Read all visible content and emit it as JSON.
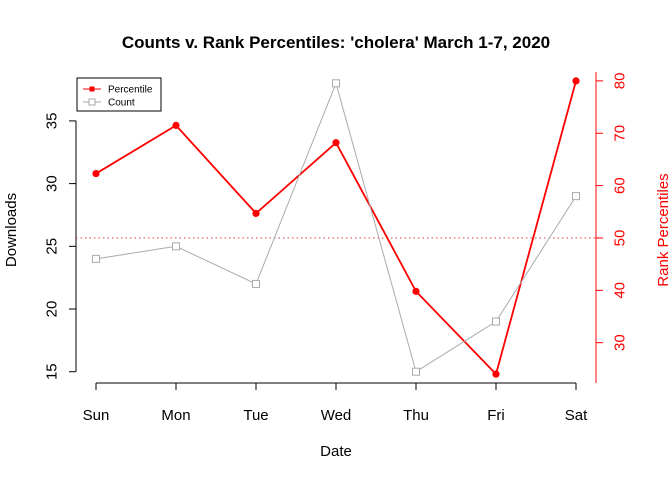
{
  "chart_data": {
    "type": "line",
    "title": "Counts v. Rank Percentiles: 'cholera' March 1-7, 2020",
    "xlabel": "Date",
    "ylabel": "Downloads",
    "y2label": "Rank Percentiles",
    "categories": [
      "Sun",
      "Mon",
      "Tue",
      "Wed",
      "Thu",
      "Fri",
      "Sat"
    ],
    "y_ticks": [
      15,
      20,
      25,
      30,
      35
    ],
    "y2_ticks": [
      30,
      40,
      50,
      60,
      70,
      80
    ],
    "ylim": [
      14.1,
      38.9
    ],
    "y2lim": [
      22.3,
      81.7
    ],
    "reference_line": {
      "axis": "y2",
      "value": 50,
      "style": "dotted",
      "color": "#e04040"
    },
    "series": [
      {
        "name": "Percentile",
        "axis": "y2",
        "color": "#ff0000",
        "marker": "filled-circle",
        "values": [
          62.3,
          71.5,
          54.7,
          68.2,
          39.8,
          24.0,
          80.0
        ]
      },
      {
        "name": "Count",
        "axis": "y",
        "color": "#aaaaaa",
        "marker": "open-square",
        "values": [
          24,
          25,
          22,
          38,
          15,
          19,
          29
        ]
      }
    ],
    "legend": {
      "position": "top-left",
      "entries": [
        "Percentile",
        "Count"
      ]
    },
    "colors": {
      "percentile": "#ff0000",
      "count": "#aaaaaa",
      "axis_right": "#ff0000"
    }
  }
}
